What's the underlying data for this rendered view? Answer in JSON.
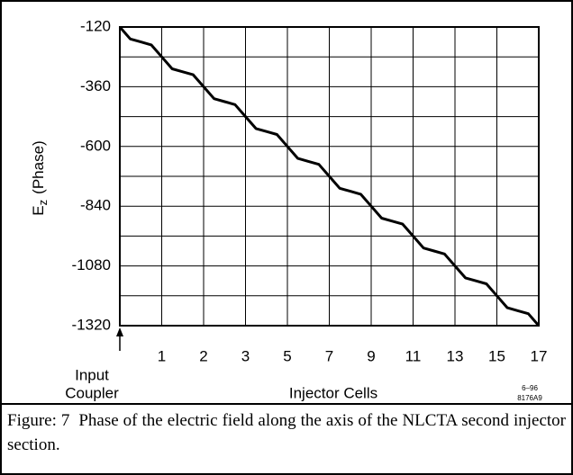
{
  "chart_data": {
    "type": "line",
    "y_label": {
      "main": "E",
      "sub": "z",
      "rest": "(Phase)"
    },
    "x_label": "Injector Cells",
    "annotation": {
      "line1": "Input",
      "line2": "Coupler"
    },
    "code": {
      "line1": "6–96",
      "line2": "8176A9"
    },
    "xlim": [
      0,
      10
    ],
    "xticks": [
      1,
      2,
      3,
      {
        "value": 4,
        "label": "5"
      },
      {
        "value": 5,
        "label": "7"
      },
      {
        "value": 6,
        "label": "9"
      },
      {
        "value": 7,
        "label": "11"
      },
      {
        "value": 8,
        "label": "13"
      },
      {
        "value": 9,
        "label": "15"
      },
      {
        "value": 10,
        "label": "17"
      }
    ],
    "ylim": [
      -1320,
      -120
    ],
    "yticks": [
      -120,
      -360,
      -600,
      -840,
      -1080,
      -1320
    ],
    "yminor": [
      -240,
      -480,
      -720,
      -960,
      -1200
    ],
    "grid": true,
    "color": "#000000",
    "x": [
      0,
      0.25,
      0.5,
      0.75,
      1,
      1.25,
      1.5,
      1.75,
      2,
      2.25,
      2.5,
      2.75,
      3,
      3.25,
      3.5,
      3.75,
      4,
      4.25,
      4.5,
      4.75,
      5,
      5.25,
      5.5,
      5.75,
      6,
      6.25,
      6.5,
      6.75,
      7,
      7.25,
      7.5,
      7.75,
      8,
      8.25,
      8.5,
      8.75,
      9,
      9.25,
      9.5,
      9.75,
      10
    ],
    "values": [
      -120,
      -168,
      -180,
      -192,
      -240,
      -288,
      -300,
      -312,
      -360,
      -408,
      -420,
      -432,
      -480,
      -528,
      -540,
      -552,
      -600,
      -648,
      -660,
      -672,
      -720,
      -768,
      -780,
      -792,
      -840,
      -888,
      -900,
      -912,
      -960,
      -1008,
      -1020,
      -1032,
      -1080,
      -1128,
      -1140,
      -1152,
      -1200,
      -1248,
      -1260,
      -1272,
      -1320
    ]
  },
  "caption": "Figure: 7  Phase of the electric field along the axis of the NLCTA second injector section."
}
